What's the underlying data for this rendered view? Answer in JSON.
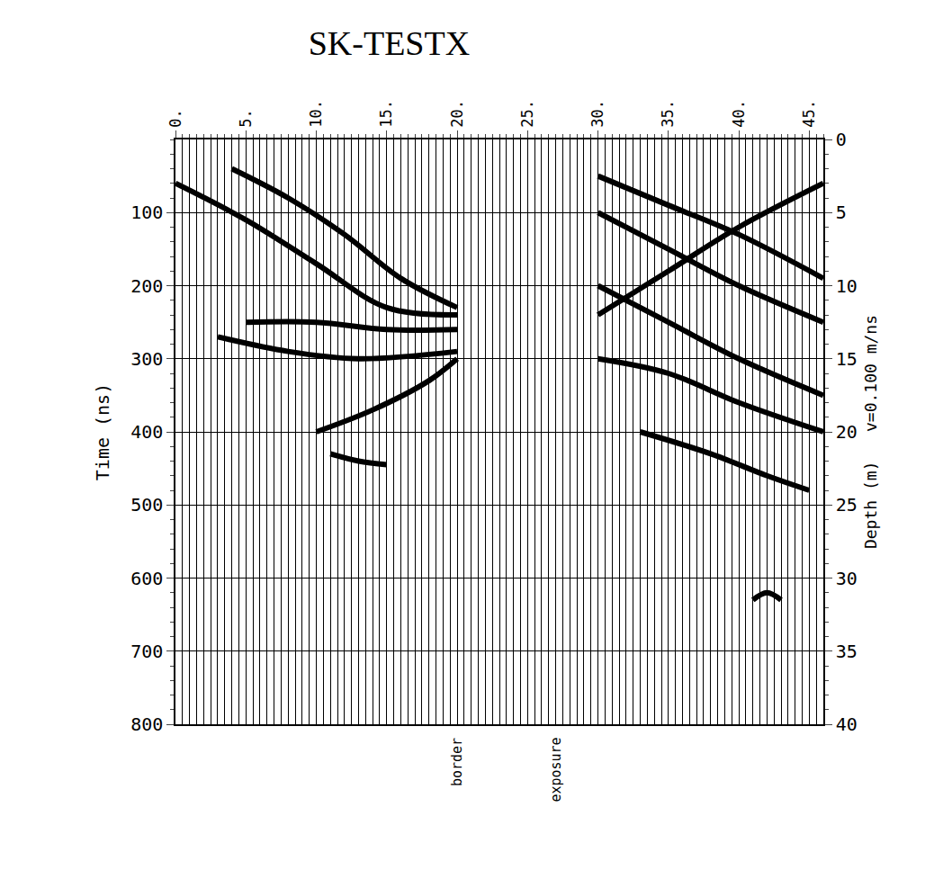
{
  "chart_data": {
    "type": "line",
    "title": "SK-TESTX",
    "x_label": "",
    "y_label": "Time (ns)",
    "y2_label": "Depth (m)   v=0.100 m/ns",
    "xlim": [
      0,
      46
    ],
    "xticks": [
      {
        "value": 0,
        "label": "0."
      },
      {
        "value": 5,
        "label": "5."
      },
      {
        "value": 10,
        "label": "10."
      },
      {
        "value": 15,
        "label": "15."
      },
      {
        "value": 20,
        "label": "20."
      },
      {
        "value": 25,
        "label": "25."
      },
      {
        "value": 30,
        "label": "30."
      },
      {
        "value": 35,
        "label": "35."
      },
      {
        "value": 40,
        "label": "40."
      },
      {
        "value": 45,
        "label": "45."
      }
    ],
    "ylim": [
      800,
      0
    ],
    "yticks": [
      100,
      200,
      300,
      400,
      500,
      600,
      700,
      800
    ],
    "y2lim": [
      40,
      0
    ],
    "y2ticks": [
      0,
      5,
      10,
      15,
      20,
      25,
      30,
      35,
      40
    ],
    "grid": true,
    "color": "#000000",
    "series": [
      {
        "x": [
          0,
          5,
          10,
          15,
          20
        ],
        "values": [
          60,
          110,
          170,
          230,
          240
        ]
      },
      {
        "x": [
          4,
          8,
          12,
          16,
          20
        ],
        "values": [
          40,
          80,
          130,
          190,
          230
        ]
      },
      {
        "x": [
          5,
          10,
          15,
          20
        ],
        "values": [
          250,
          250,
          260,
          260
        ]
      },
      {
        "x": [
          3,
          8,
          13,
          20
        ],
        "values": [
          270,
          290,
          300,
          290
        ]
      },
      {
        "x": [
          10,
          14,
          18,
          20
        ],
        "values": [
          400,
          370,
          330,
          300
        ]
      },
      {
        "x": [
          11,
          13,
          15
        ],
        "values": [
          430,
          440,
          445
        ]
      },
      {
        "x": [
          30,
          35,
          40,
          46
        ],
        "values": [
          50,
          90,
          130,
          190
        ]
      },
      {
        "x": [
          30,
          35,
          40,
          46
        ],
        "values": [
          100,
          150,
          200,
          250
        ]
      },
      {
        "x": [
          30,
          35,
          40,
          46
        ],
        "values": [
          200,
          250,
          300,
          350
        ]
      },
      {
        "x": [
          30,
          35,
          40,
          46
        ],
        "values": [
          300,
          320,
          360,
          400
        ]
      },
      {
        "x": [
          30,
          35,
          40,
          46
        ],
        "values": [
          240,
          180,
          120,
          60
        ]
      },
      {
        "x": [
          33,
          38,
          42,
          45
        ],
        "values": [
          400,
          430,
          460,
          480
        ]
      },
      {
        "x": [
          41,
          42,
          43
        ],
        "values": [
          630,
          620,
          630
        ]
      }
    ],
    "annotations": [
      {
        "text": "border",
        "x": 20
      },
      {
        "text": "exposure",
        "x": 27
      }
    ]
  }
}
